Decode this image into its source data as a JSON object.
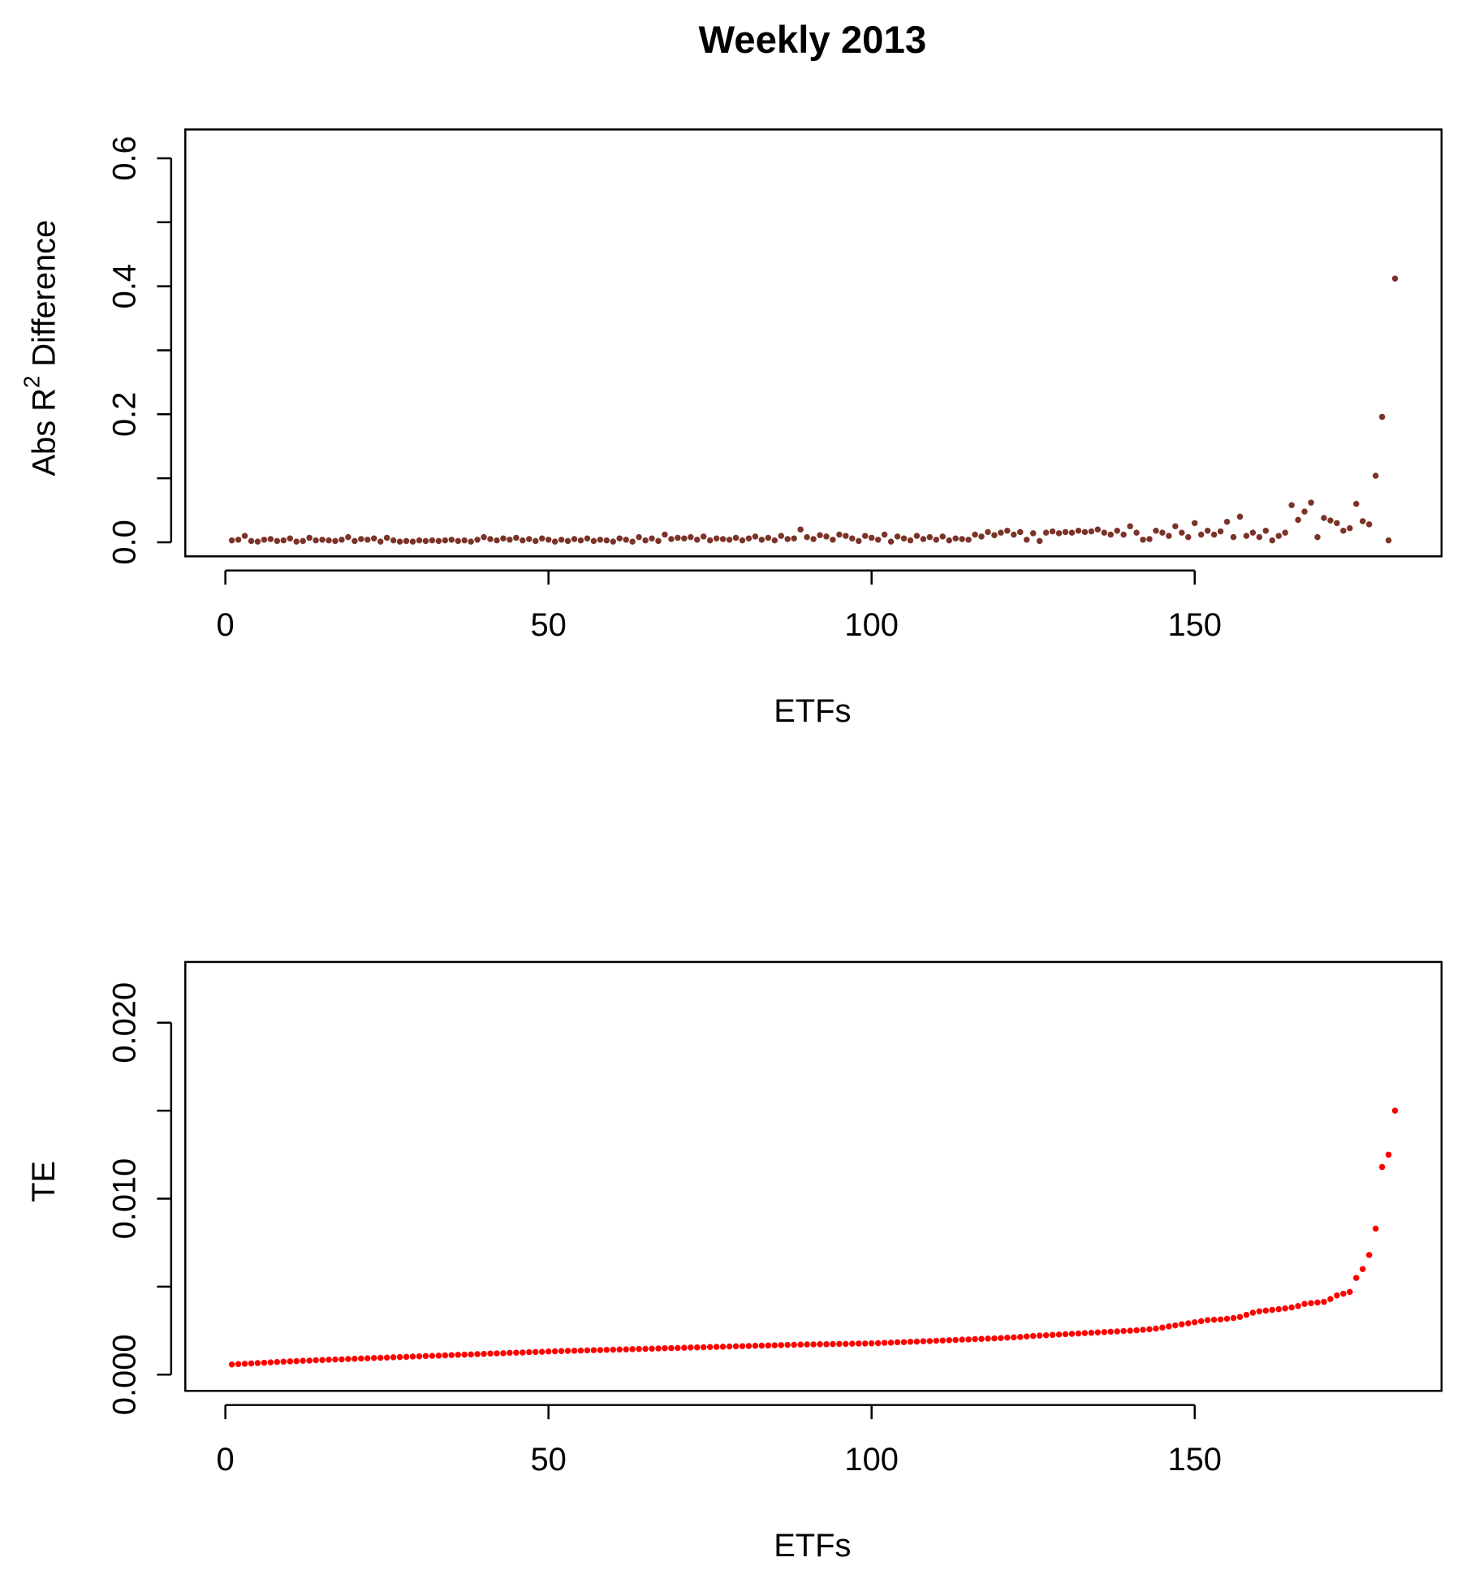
{
  "chart_data": [
    {
      "type": "scatter",
      "title": "Weekly 2013",
      "xlabel": "ETFs",
      "ylabel": [
        "Abs R",
        "2",
        " Difference"
      ],
      "color": "#7b3328",
      "xlim": [
        -6.2,
        188.2
      ],
      "xticks": [
        0,
        50,
        100,
        150
      ],
      "ylim": [
        -0.022,
        0.645
      ],
      "yticks": [
        {
          "value": 0,
          "label": "0.0"
        },
        0.2,
        0.4,
        0.6
      ],
      "yticks_unlabeled": [
        0.1,
        0.3,
        0.5
      ],
      "x": [
        1,
        2,
        3,
        4,
        5,
        6,
        7,
        8,
        9,
        10,
        11,
        12,
        13,
        14,
        15,
        16,
        17,
        18,
        19,
        20,
        21,
        22,
        23,
        24,
        25,
        26,
        27,
        28,
        29,
        30,
        31,
        32,
        33,
        34,
        35,
        36,
        37,
        38,
        39,
        40,
        41,
        42,
        43,
        44,
        45,
        46,
        47,
        48,
        49,
        50,
        51,
        52,
        53,
        54,
        55,
        56,
        57,
        58,
        59,
        60,
        61,
        62,
        63,
        64,
        65,
        66,
        67,
        68,
        69,
        70,
        71,
        72,
        73,
        74,
        75,
        76,
        77,
        78,
        79,
        80,
        81,
        82,
        83,
        84,
        85,
        86,
        87,
        88,
        89,
        90,
        91,
        92,
        93,
        94,
        95,
        96,
        97,
        98,
        99,
        100,
        101,
        102,
        103,
        104,
        105,
        106,
        107,
        108,
        109,
        110,
        111,
        112,
        113,
        114,
        115,
        116,
        117,
        118,
        119,
        120,
        121,
        122,
        123,
        124,
        125,
        126,
        127,
        128,
        129,
        130,
        131,
        132,
        133,
        134,
        135,
        136,
        137,
        138,
        139,
        140,
        141,
        142,
        143,
        144,
        145,
        146,
        147,
        148,
        149,
        150,
        151,
        152,
        153,
        154,
        155,
        156,
        157,
        158,
        159,
        160,
        161,
        162,
        163,
        164,
        165,
        166,
        167,
        168,
        169,
        170,
        171,
        172,
        173,
        174,
        175,
        176,
        177,
        178,
        179,
        180,
        181
      ],
      "values": [
        0.003,
        0.004,
        0.01,
        0.002,
        0.001,
        0.004,
        0.005,
        0.002,
        0.003,
        0.006,
        0.001,
        0.002,
        0.007,
        0.003,
        0.004,
        0.003,
        0.002,
        0.004,
        0.008,
        0.002,
        0.005,
        0.004,
        0.006,
        0.001,
        0.007,
        0.003,
        0.001,
        0.002,
        0.001,
        0.003,
        0.002,
        0.003,
        0.002,
        0.003,
        0.004,
        0.002,
        0.003,
        0.001,
        0.004,
        0.008,
        0.005,
        0.003,
        0.006,
        0.004,
        0.007,
        0.003,
        0.005,
        0.002,
        0.006,
        0.004,
        0.001,
        0.004,
        0.002,
        0.005,
        0.003,
        0.006,
        0.002,
        0.004,
        0.003,
        0.001,
        0.006,
        0.004,
        0.001,
        0.008,
        0.003,
        0.006,
        0.002,
        0.012,
        0.005,
        0.007,
        0.006,
        0.008,
        0.004,
        0.009,
        0.003,
        0.006,
        0.005,
        0.004,
        0.007,
        0.003,
        0.006,
        0.009,
        0.004,
        0.007,
        0.003,
        0.01,
        0.005,
        0.006,
        0.02,
        0.008,
        0.005,
        0.011,
        0.009,
        0.004,
        0.012,
        0.01,
        0.006,
        0.002,
        0.01,
        0.007,
        0.004,
        0.012,
        0.001,
        0.009,
        0.006,
        0.003,
        0.01,
        0.005,
        0.008,
        0.004,
        0.009,
        0.003,
        0.006,
        0.005,
        0.004,
        0.012,
        0.009,
        0.016,
        0.011,
        0.015,
        0.018,
        0.012,
        0.016,
        0.004,
        0.014,
        0.002,
        0.015,
        0.017,
        0.014,
        0.016,
        0.015,
        0.018,
        0.016,
        0.017,
        0.02,
        0.015,
        0.012,
        0.018,
        0.012,
        0.025,
        0.015,
        0.004,
        0.005,
        0.018,
        0.015,
        0.01,
        0.025,
        0.015,
        0.008,
        0.03,
        0.012,
        0.018,
        0.012,
        0.017,
        0.032,
        0.008,
        0.04,
        0.01,
        0.015,
        0.008,
        0.018,
        0.003,
        0.01,
        0.015,
        0.058,
        0.035,
        0.048,
        0.062,
        0.008,
        0.038,
        0.034,
        0.03,
        0.018,
        0.022,
        0.06,
        0.033,
        0.028,
        0.104,
        0.196,
        0.003,
        0.412
      ]
    },
    {
      "type": "scatter",
      "xlabel": "ETFs",
      "ylabel": "TE",
      "color": "#ff0000",
      "xlim": [
        -6.2,
        188.2
      ],
      "xticks": [
        0,
        50,
        100,
        150
      ],
      "ylim": [
        -0.00092,
        0.02345
      ],
      "yticks": [
        {
          "value": 0,
          "label": "0.000"
        },
        {
          "value": 0.01,
          "label": "0.010"
        },
        {
          "value": 0.02,
          "label": "0.020"
        }
      ],
      "yticks_unlabeled": [
        0.005,
        0.015
      ],
      "x": [
        1,
        2,
        3,
        4,
        5,
        6,
        7,
        8,
        9,
        10,
        11,
        12,
        13,
        14,
        15,
        16,
        17,
        18,
        19,
        20,
        21,
        22,
        23,
        24,
        25,
        26,
        27,
        28,
        29,
        30,
        31,
        32,
        33,
        34,
        35,
        36,
        37,
        38,
        39,
        40,
        41,
        42,
        43,
        44,
        45,
        46,
        47,
        48,
        49,
        50,
        51,
        52,
        53,
        54,
        55,
        56,
        57,
        58,
        59,
        60,
        61,
        62,
        63,
        64,
        65,
        66,
        67,
        68,
        69,
        70,
        71,
        72,
        73,
        74,
        75,
        76,
        77,
        78,
        79,
        80,
        81,
        82,
        83,
        84,
        85,
        86,
        87,
        88,
        89,
        90,
        91,
        92,
        93,
        94,
        95,
        96,
        97,
        98,
        99,
        100,
        101,
        102,
        103,
        104,
        105,
        106,
        107,
        108,
        109,
        110,
        111,
        112,
        113,
        114,
        115,
        116,
        117,
        118,
        119,
        120,
        121,
        122,
        123,
        124,
        125,
        126,
        127,
        128,
        129,
        130,
        131,
        132,
        133,
        134,
        135,
        136,
        137,
        138,
        139,
        140,
        141,
        142,
        143,
        144,
        145,
        146,
        147,
        148,
        149,
        150,
        151,
        152,
        153,
        154,
        155,
        156,
        157,
        158,
        159,
        160,
        161,
        162,
        163,
        164,
        165,
        166,
        167,
        168,
        169,
        170,
        171,
        172,
        173,
        174,
        175,
        176,
        177,
        178,
        179,
        180,
        181
      ],
      "values": [
        0.00058,
        0.0006,
        0.00062,
        0.00064,
        0.00066,
        0.00068,
        0.0007,
        0.00072,
        0.00074,
        0.00076,
        0.00077,
        0.00079,
        0.0008,
        0.00082,
        0.00083,
        0.00085,
        0.00086,
        0.00087,
        0.00089,
        0.0009,
        0.00092,
        0.00093,
        0.00095,
        0.00096,
        0.00097,
        0.00099,
        0.001,
        0.00101,
        0.00103,
        0.00104,
        0.00106,
        0.00107,
        0.00108,
        0.0011,
        0.00111,
        0.00113,
        0.00114,
        0.00115,
        0.00117,
        0.00118,
        0.0012,
        0.00121,
        0.00122,
        0.00124,
        0.00125,
        0.00126,
        0.00128,
        0.00129,
        0.0013,
        0.00132,
        0.00133,
        0.00134,
        0.00135,
        0.00136,
        0.00137,
        0.00138,
        0.00139,
        0.0014,
        0.00141,
        0.00142,
        0.00143,
        0.00144,
        0.00145,
        0.00146,
        0.00147,
        0.00148,
        0.00149,
        0.0015,
        0.00151,
        0.00152,
        0.00153,
        0.00154,
        0.00155,
        0.00156,
        0.00157,
        0.00158,
        0.00159,
        0.0016,
        0.00161,
        0.00162,
        0.00163,
        0.00164,
        0.00165,
        0.00166,
        0.00167,
        0.00168,
        0.00169,
        0.0017,
        0.00171,
        0.00172,
        0.00172,
        0.00173,
        0.00173,
        0.00174,
        0.00175,
        0.00175,
        0.00176,
        0.00177,
        0.00177,
        0.00178,
        0.00179,
        0.00181,
        0.00182,
        0.00184,
        0.00185,
        0.00187,
        0.00188,
        0.0019,
        0.00191,
        0.00193,
        0.00194,
        0.00196,
        0.00197,
        0.00199,
        0.002,
        0.00202,
        0.00203,
        0.00205,
        0.00206,
        0.00208,
        0.0021,
        0.00212,
        0.00214,
        0.00217,
        0.0022,
        0.00222,
        0.00224,
        0.00226,
        0.00228,
        0.0023,
        0.00232,
        0.00234,
        0.00236,
        0.00238,
        0.0024,
        0.00242,
        0.00244,
        0.00246,
        0.00248,
        0.0025,
        0.00252,
        0.00255,
        0.00258,
        0.00262,
        0.00268,
        0.00274,
        0.0028,
        0.00286,
        0.00292,
        0.00298,
        0.00304,
        0.0031,
        0.00312,
        0.00314,
        0.00318,
        0.00322,
        0.00328,
        0.0034,
        0.00352,
        0.0036,
        0.00364,
        0.00368,
        0.00372,
        0.00376,
        0.00382,
        0.0039,
        0.00402,
        0.00406,
        0.0041,
        0.00414,
        0.0043,
        0.0045,
        0.0046,
        0.0047,
        0.0055,
        0.006,
        0.0068,
        0.0083,
        0.0118,
        0.0125,
        0.015
      ]
    }
  ]
}
